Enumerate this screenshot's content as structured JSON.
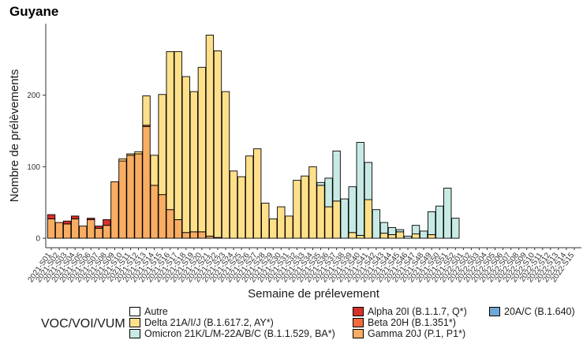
{
  "chart_data": {
    "type": "bar",
    "stacked": true,
    "title": "Guyane",
    "xlabel": "Semaine de prélevement",
    "ylabel": "Nombre de prélèvements",
    "ylim": [
      0,
      300
    ],
    "yticks": [
      0,
      100,
      200
    ],
    "grid": false,
    "legend_title": "VOC/VOI/VUM",
    "legend_position": "bottom",
    "categories": [
      "2021-S01",
      "2021-S02",
      "2021-S03",
      "2021-S04",
      "2021-S05",
      "2021-S06",
      "2021-S07",
      "2021-S08",
      "2021-S09",
      "2021-S10",
      "2021-S11",
      "2021-S12",
      "2021-S13",
      "2021-S14",
      "2021-S15",
      "2021-S16",
      "2021-S17",
      "2021-S18",
      "2021-S19",
      "2021-S20",
      "2021-S21",
      "2021-S22",
      "2021-S23",
      "2021-S24",
      "2021-S25",
      "2021-S26",
      "2021-S27",
      "2021-S28",
      "2021-S29",
      "2021-S30",
      "2021-S31",
      "2021-S32",
      "2021-S33",
      "2021-S34",
      "2021-S35",
      "2021-S36",
      "2021-S37",
      "2021-S38",
      "2021-S39",
      "2021-S40",
      "2021-S41",
      "2021-S42",
      "2021-S43",
      "2021-S44",
      "2021-S45",
      "2021-S46",
      "2021-S47",
      "2021-S48",
      "2021-S49",
      "2021-S50",
      "2021-S51",
      "2021-S52",
      "2022-S01",
      "2022-S02",
      "2022-S03",
      "2022-S04",
      "2022-S05",
      "2022-S06",
      "2022-S07",
      "2022-S08",
      "2022-S09",
      "2022-S10",
      "2022-S11",
      "2022-S12",
      "2022-S13",
      "2022-S14",
      "2022-S15"
    ],
    "series": [
      {
        "name": "Autre",
        "color": "#ffffff",
        "values": [
          0,
          0,
          0,
          0,
          0,
          0,
          0,
          0,
          0,
          0,
          0,
          0,
          0,
          0,
          0,
          0,
          0,
          0,
          0,
          0,
          0,
          0,
          0,
          0,
          0,
          0,
          0,
          0,
          0,
          0,
          0,
          0,
          0,
          0,
          0,
          0,
          0,
          0,
          0,
          0,
          0,
          0,
          0,
          0,
          0,
          0,
          0,
          0,
          0,
          0,
          0,
          0,
          0,
          0,
          0,
          0,
          0,
          0,
          0,
          0,
          0,
          0,
          0,
          0,
          0,
          0,
          0
        ]
      },
      {
        "name": "Gamma 20J (P.1, P1*)",
        "color": "#f8ad62",
        "values": [
          27,
          22,
          20,
          27,
          17,
          26,
          14,
          18,
          79,
          108,
          116,
          118,
          156,
          74,
          61,
          40,
          26,
          8,
          9,
          9,
          3,
          1,
          0,
          0,
          0,
          0,
          0,
          0,
          0,
          0,
          0,
          0,
          0,
          0,
          0,
          0,
          0,
          0,
          0,
          0,
          0,
          0,
          0,
          0,
          0,
          0,
          0,
          0,
          0,
          0,
          0,
          0,
          0,
          0,
          0,
          0,
          0,
          0,
          0,
          0,
          0,
          0,
          0,
          0,
          0,
          0,
          0
        ]
      },
      {
        "name": "Beta 20H (B.1.351*)",
        "color": "#f26b3a",
        "values": [
          0,
          0,
          0,
          0,
          0,
          0,
          0,
          0,
          0,
          0,
          0,
          0,
          2,
          0,
          0,
          0,
          0,
          0,
          0,
          0,
          0,
          0,
          0,
          0,
          0,
          0,
          0,
          0,
          0,
          0,
          0,
          0,
          0,
          0,
          0,
          0,
          0,
          0,
          0,
          0,
          0,
          0,
          0,
          0,
          0,
          0,
          0,
          0,
          0,
          0,
          0,
          0,
          0,
          0,
          0,
          0,
          0,
          0,
          0,
          0,
          0,
          0,
          0,
          0,
          0,
          0,
          0
        ]
      },
      {
        "name": "Alpha 20I (B.1.1.7, Q*)",
        "color": "#d7302b",
        "values": [
          6,
          0,
          4,
          4,
          0,
          2,
          3,
          8,
          0,
          0,
          0,
          0,
          0,
          0,
          0,
          0,
          0,
          0,
          0,
          0,
          0,
          0,
          0,
          0,
          0,
          0,
          0,
          0,
          0,
          0,
          0,
          0,
          0,
          0,
          0,
          0,
          0,
          0,
          0,
          0,
          0,
          0,
          0,
          0,
          0,
          0,
          0,
          0,
          0,
          0,
          0,
          0,
          0,
          0,
          0,
          0,
          0,
          0,
          0,
          0,
          0,
          0,
          0,
          0,
          0,
          0,
          0
        ]
      },
      {
        "name": "Delta 21A/I/J (B.1.617.2, AY*)",
        "color": "#fee08b",
        "values": [
          0,
          0,
          0,
          0,
          0,
          0,
          0,
          0,
          0,
          3,
          2,
          3,
          41,
          42,
          140,
          221,
          235,
          218,
          196,
          230,
          281,
          261,
          205,
          94,
          86,
          115,
          125,
          49,
          27,
          44,
          31,
          81,
          87,
          100,
          74,
          44,
          52,
          0,
          8,
          4,
          54,
          0,
          7,
          5,
          9,
          0,
          6,
          0,
          5,
          0,
          0,
          0,
          0,
          0,
          0,
          0,
          0,
          0,
          0,
          0,
          0,
          0,
          0,
          0,
          0,
          0,
          0
        ]
      },
      {
        "name": "Omicron 21K/L/M-22A/B/C (B.1.1.529, BA*)",
        "color": "#c7eae5",
        "values": [
          0,
          0,
          0,
          0,
          0,
          0,
          0,
          0,
          0,
          0,
          0,
          0,
          0,
          0,
          0,
          0,
          0,
          0,
          0,
          0,
          0,
          0,
          0,
          0,
          0,
          0,
          0,
          0,
          0,
          0,
          0,
          0,
          0,
          0,
          4,
          40,
          70,
          55,
          64,
          130,
          52,
          40,
          15,
          10,
          3,
          3,
          12,
          10,
          32,
          45,
          70,
          28,
          0,
          0,
          0,
          0,
          0,
          0,
          0,
          0,
          0,
          0,
          0,
          0,
          0,
          0,
          0
        ]
      },
      {
        "name": "20A/C (B.1.640)",
        "color": "#6fa8d6",
        "values": [
          0,
          0,
          0,
          0,
          0,
          0,
          0,
          0,
          0,
          0,
          0,
          0,
          0,
          0,
          0,
          0,
          0,
          0,
          0,
          0,
          0,
          0,
          0,
          0,
          0,
          0,
          0,
          0,
          0,
          0,
          0,
          0,
          0,
          0,
          0,
          0,
          0,
          0,
          0,
          0,
          0,
          0,
          0,
          0,
          0,
          0,
          0,
          0,
          0,
          0,
          0,
          0,
          0,
          0,
          0,
          0,
          0,
          0,
          0,
          0,
          0,
          0,
          0,
          0,
          0,
          0,
          0
        ]
      }
    ],
    "legend": [
      {
        "label": "Autre",
        "color": "#ffffff"
      },
      {
        "label": "Delta 21A/I/J (B.1.617.2, AY*)",
        "color": "#fee08b"
      },
      {
        "label": "Omicron 21K/L/M-22A/B/C (B.1.1.529, BA*)",
        "color": "#c7eae5"
      },
      {
        "label": "Alpha 20I (B.1.1.7, Q*)",
        "color": "#d7302b"
      },
      {
        "label": "Beta 20H (B.1.351*)",
        "color": "#f26b3a"
      },
      {
        "label": "Gamma 20J (P.1, P1*)",
        "color": "#f8ad62"
      },
      {
        "label": "20A/C (B.1.640)",
        "color": "#6fa8d6"
      }
    ]
  }
}
